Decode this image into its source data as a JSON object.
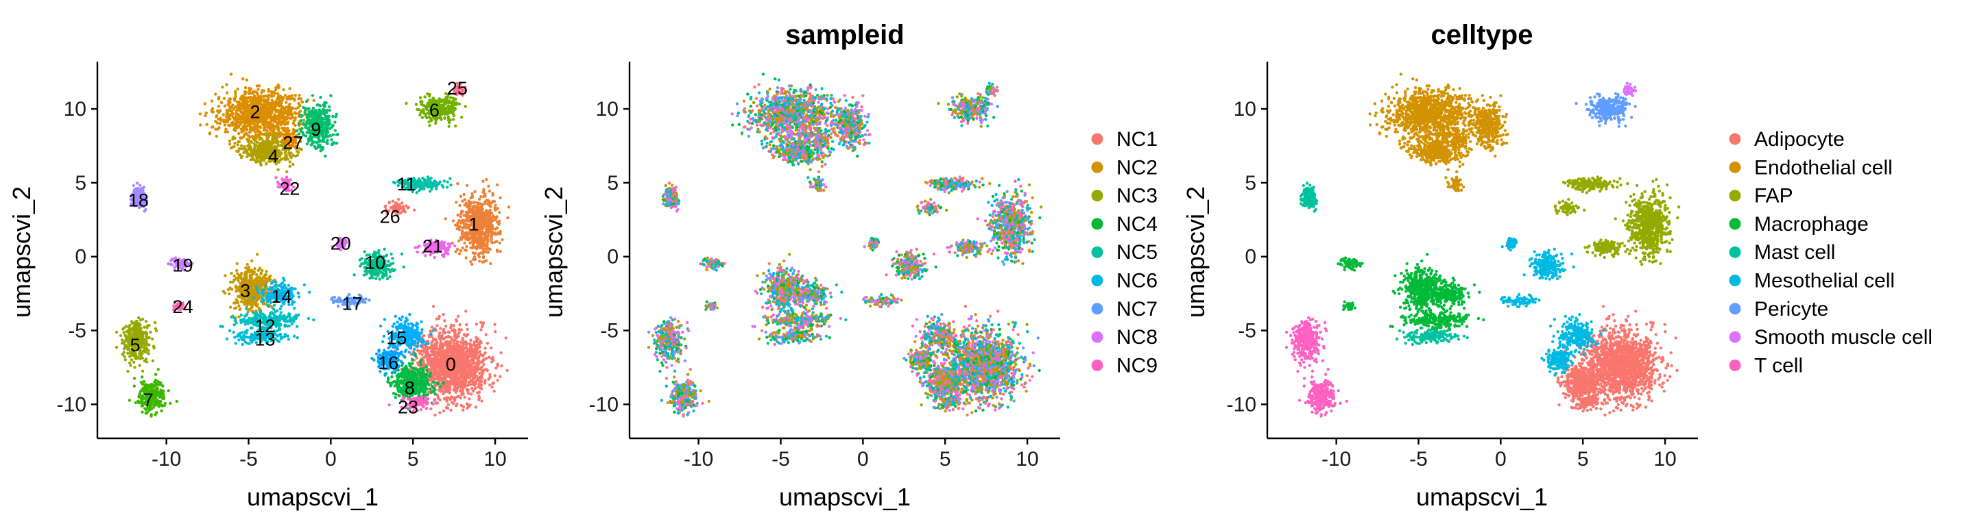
{
  "chart_data": [
    {
      "type": "scatter",
      "title": "",
      "xlabel": "umapscvi_1",
      "ylabel": "umapscvi_2",
      "xlim": [
        -14.2,
        12
      ],
      "ylim": [
        -12.3,
        13.2
      ],
      "xticks": [
        -10,
        -5,
        0,
        5,
        10
      ],
      "yticks": [
        -10,
        -5,
        0,
        5,
        10
      ],
      "x_tick_labels": [
        "-10",
        "-5",
        "0",
        "5",
        "10"
      ],
      "y_tick_labels": [
        "-10",
        "-5",
        "0",
        "5",
        "10"
      ],
      "color_by": "seurat_clusters",
      "legend": false,
      "cluster_labels": [
        {
          "label": "0",
          "x": 7.3,
          "y": -7.3
        },
        {
          "label": "1",
          "x": 8.7,
          "y": 2.2
        },
        {
          "label": "2",
          "x": -4.6,
          "y": 9.8
        },
        {
          "label": "3",
          "x": -5.2,
          "y": -2.3
        },
        {
          "label": "4",
          "x": -3.5,
          "y": 6.8
        },
        {
          "label": "5",
          "x": -11.9,
          "y": -6.0
        },
        {
          "label": "6",
          "x": 6.3,
          "y": 9.9
        },
        {
          "label": "7",
          "x": -11.1,
          "y": -9.7
        },
        {
          "label": "8",
          "x": 4.8,
          "y": -8.9
        },
        {
          "label": "9",
          "x": -0.9,
          "y": 8.6
        },
        {
          "label": "10",
          "x": 2.7,
          "y": -0.4
        },
        {
          "label": "11",
          "x": 4.6,
          "y": 4.9
        },
        {
          "label": "12",
          "x": -4.0,
          "y": -4.7
        },
        {
          "label": "13",
          "x": -4.0,
          "y": -5.6
        },
        {
          "label": "14",
          "x": -3.0,
          "y": -2.7
        },
        {
          "label": "15",
          "x": 4.0,
          "y": -5.5
        },
        {
          "label": "16",
          "x": 3.5,
          "y": -7.2
        },
        {
          "label": "17",
          "x": 1.3,
          "y": -3.2
        },
        {
          "label": "18",
          "x": -11.7,
          "y": 3.8
        },
        {
          "label": "19",
          "x": -9.0,
          "y": -0.6
        },
        {
          "label": "20",
          "x": 0.6,
          "y": 0.9
        },
        {
          "label": "21",
          "x": 6.2,
          "y": 0.7
        },
        {
          "label": "22",
          "x": -2.5,
          "y": 4.6
        },
        {
          "label": "23",
          "x": 4.7,
          "y": -10.2
        },
        {
          "label": "24",
          "x": -9.0,
          "y": -3.4
        },
        {
          "label": "25",
          "x": 7.7,
          "y": 11.4
        },
        {
          "label": "26",
          "x": 3.6,
          "y": 2.7
        },
        {
          "label": "27",
          "x": -2.3,
          "y": 7.7
        }
      ]
    },
    {
      "type": "scatter",
      "title": "sampleid",
      "xlabel": "umapscvi_1",
      "ylabel": "umapscvi_2",
      "xlim": [
        -14.2,
        12
      ],
      "ylim": [
        -12.3,
        13.2
      ],
      "xticks": [
        -10,
        -5,
        0,
        5,
        10
      ],
      "yticks": [
        -10,
        -5,
        0,
        5,
        10
      ],
      "x_tick_labels": [
        "-10",
        "-5",
        "0",
        "5",
        "10"
      ],
      "y_tick_labels": [
        "-10",
        "-5",
        "0",
        "5",
        "10"
      ],
      "color_by": "sampleid",
      "legend": true,
      "legend_position": "right",
      "categories": [
        "NC1",
        "NC2",
        "NC3",
        "NC4",
        "NC5",
        "NC6",
        "NC7",
        "NC8",
        "NC9"
      ],
      "colors": [
        "#F8766D",
        "#D39200",
        "#93AA00",
        "#00BA38",
        "#00C19F",
        "#00B9E3",
        "#619CFF",
        "#DB72FB",
        "#FF61C3"
      ]
    },
    {
      "type": "scatter",
      "title": "celltype",
      "xlabel": "umapscvi_1",
      "ylabel": "umapscvi_2",
      "xlim": [
        -14.2,
        12
      ],
      "ylim": [
        -12.3,
        13.2
      ],
      "xticks": [
        -10,
        -5,
        0,
        5,
        10
      ],
      "yticks": [
        -10,
        -5,
        0,
        5,
        10
      ],
      "x_tick_labels": [
        "-10",
        "-5",
        "0",
        "5",
        "10"
      ],
      "y_tick_labels": [
        "-10",
        "-5",
        "0",
        "5",
        "10"
      ],
      "color_by": "celltype",
      "legend": true,
      "legend_position": "right",
      "categories": [
        "Adipocyte",
        "Endothelial cell",
        "FAP",
        "Macrophage",
        "Mast cell",
        "Mesothelial cell",
        "Pericyte",
        "Smooth muscle cell",
        "T cell"
      ],
      "colors": [
        "#F8766D",
        "#D39200",
        "#93AA00",
        "#00BA38",
        "#00C19F",
        "#00B9E3",
        "#619CFF",
        "#DB72FB",
        "#FF61C3"
      ]
    }
  ],
  "cluster_palette": [
    "#F8766D",
    "#EC8239",
    "#DB8E00",
    "#C79800",
    "#B0A100",
    "#94AA00",
    "#72B000",
    "#3DB700",
    "#00BB45",
    "#00BE6C",
    "#00C08B",
    "#00C1A7",
    "#00BFC0",
    "#00BCD6",
    "#00B6EB",
    "#00AEFA",
    "#00A5FF",
    "#619CFF",
    "#A58AFF",
    "#C77CFF",
    "#E070FF",
    "#EF67EB",
    "#FA62D9",
    "#FF61C3",
    "#FF65AE",
    "#FF6C91",
    "#F8766D",
    "#E58700"
  ],
  "clusters": [
    {
      "id": 0,
      "cx": 7.3,
      "cy": -7.3,
      "rx": 2.4,
      "ry": 2.5,
      "n": 1500,
      "cell": 0
    },
    {
      "id": 1,
      "cx": 9.0,
      "cy": 2.1,
      "rx": 1.4,
      "ry": 2.2,
      "n": 650,
      "cell": 2
    },
    {
      "id": 2,
      "cx": -4.3,
      "cy": 9.6,
      "rx": 2.6,
      "ry": 1.8,
      "n": 1000,
      "cell": 1
    },
    {
      "id": 3,
      "cx": -4.8,
      "cy": -2.2,
      "rx": 1.3,
      "ry": 1.6,
      "n": 450,
      "cell": 3
    },
    {
      "id": 4,
      "cx": -3.9,
      "cy": 7.2,
      "rx": 1.8,
      "ry": 1.0,
      "n": 400,
      "cell": 1
    },
    {
      "id": 5,
      "cx": -11.8,
      "cy": -5.7,
      "rx": 0.9,
      "ry": 1.5,
      "n": 300,
      "cell": 8
    },
    {
      "id": 6,
      "cx": 6.6,
      "cy": 10.0,
      "rx": 1.3,
      "ry": 0.9,
      "n": 260,
      "cell": 6
    },
    {
      "id": 7,
      "cx": -10.9,
      "cy": -9.5,
      "rx": 0.9,
      "ry": 1.2,
      "n": 280,
      "cell": 8
    },
    {
      "id": 8,
      "cx": 5.0,
      "cy": -8.5,
      "rx": 1.3,
      "ry": 1.3,
      "n": 420,
      "cell": 0
    },
    {
      "id": 9,
      "cx": -0.8,
      "cy": 8.9,
      "rx": 1.1,
      "ry": 1.6,
      "n": 350,
      "cell": 1
    },
    {
      "id": 10,
      "cx": 2.9,
      "cy": -0.6,
      "rx": 1.0,
      "ry": 0.9,
      "n": 220,
      "cell": 5
    },
    {
      "id": 11,
      "cx": 5.4,
      "cy": 4.9,
      "rx": 1.6,
      "ry": 0.5,
      "n": 170,
      "cell": 2
    },
    {
      "id": 12,
      "cx": -3.8,
      "cy": -4.3,
      "rx": 2.0,
      "ry": 0.6,
      "n": 220,
      "cell": 3
    },
    {
      "id": 13,
      "cx": -4.2,
      "cy": -5.4,
      "rx": 1.6,
      "ry": 0.5,
      "n": 160,
      "cell": 4
    },
    {
      "id": 14,
      "cx": -3.2,
      "cy": -2.6,
      "rx": 1.1,
      "ry": 0.9,
      "n": 200,
      "cell": 3
    },
    {
      "id": 15,
      "cx": 4.6,
      "cy": -5.3,
      "rx": 1.2,
      "ry": 1.0,
      "n": 260,
      "cell": 5
    },
    {
      "id": 16,
      "cx": 3.6,
      "cy": -6.9,
      "rx": 0.8,
      "ry": 0.9,
      "n": 160,
      "cell": 5
    },
    {
      "id": 17,
      "cx": 1.1,
      "cy": -3.0,
      "rx": 1.2,
      "ry": 0.4,
      "n": 80,
      "cell": 5
    },
    {
      "id": 18,
      "cx": -11.7,
      "cy": 4.0,
      "rx": 0.5,
      "ry": 0.8,
      "n": 150,
      "cell": 4
    },
    {
      "id": 19,
      "cx": -9.2,
      "cy": -0.5,
      "rx": 0.6,
      "ry": 0.4,
      "n": 60,
      "cell": 3
    },
    {
      "id": 20,
      "cx": 0.6,
      "cy": 1.0,
      "rx": 0.4,
      "ry": 0.4,
      "n": 50,
      "cell": 5
    },
    {
      "id": 21,
      "cx": 6.4,
      "cy": 0.6,
      "rx": 1.0,
      "ry": 0.5,
      "n": 130,
      "cell": 2
    },
    {
      "id": 22,
      "cx": -2.7,
      "cy": 4.9,
      "rx": 0.5,
      "ry": 0.5,
      "n": 60,
      "cell": 1
    },
    {
      "id": 23,
      "cx": 5.2,
      "cy": -9.9,
      "rx": 1.0,
      "ry": 0.4,
      "n": 100,
      "cell": 0
    },
    {
      "id": 24,
      "cx": -9.2,
      "cy": -3.4,
      "rx": 0.5,
      "ry": 0.3,
      "n": 40,
      "cell": 3
    },
    {
      "id": 25,
      "cx": 7.8,
      "cy": 11.3,
      "rx": 0.4,
      "ry": 0.4,
      "n": 40,
      "cell": 7
    },
    {
      "id": 26,
      "cx": 4.0,
      "cy": 3.3,
      "rx": 0.8,
      "ry": 0.5,
      "n": 60,
      "cell": 2
    },
    {
      "id": 27,
      "cx": -2.5,
      "cy": 8.0,
      "rx": 0.6,
      "ry": 0.6,
      "n": 80,
      "cell": 1
    }
  ]
}
